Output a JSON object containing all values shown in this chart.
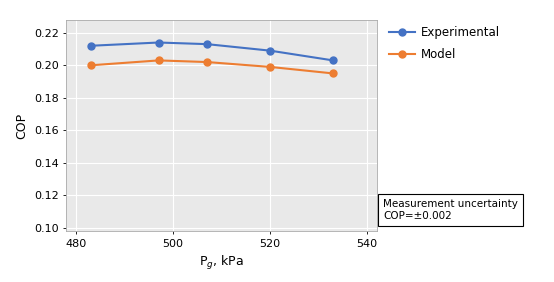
{
  "x": [
    483,
    497,
    507,
    520,
    533
  ],
  "experimental": [
    0.212,
    0.214,
    0.213,
    0.209,
    0.203
  ],
  "model": [
    0.2,
    0.203,
    0.202,
    0.199,
    0.195
  ],
  "exp_color": "#4472C4",
  "model_color": "#ED7D31",
  "xlabel": "P$_g$, kPa",
  "ylabel": "COP",
  "xlim": [
    478,
    542
  ],
  "ylim": [
    0.098,
    0.228
  ],
  "xticks": [
    480,
    500,
    520,
    540
  ],
  "yticks": [
    0.1,
    0.12,
    0.14,
    0.16,
    0.18,
    0.2,
    0.22
  ],
  "legend_exp": "Experimental",
  "legend_model": "Model",
  "annotation_line1": "Measurement uncertainty",
  "annotation_line2": "COP=±0.002",
  "marker": "o",
  "linewidth": 1.5,
  "markersize": 5,
  "grid_color": "#d9d9d9",
  "bg_color": "#e9e9e9"
}
